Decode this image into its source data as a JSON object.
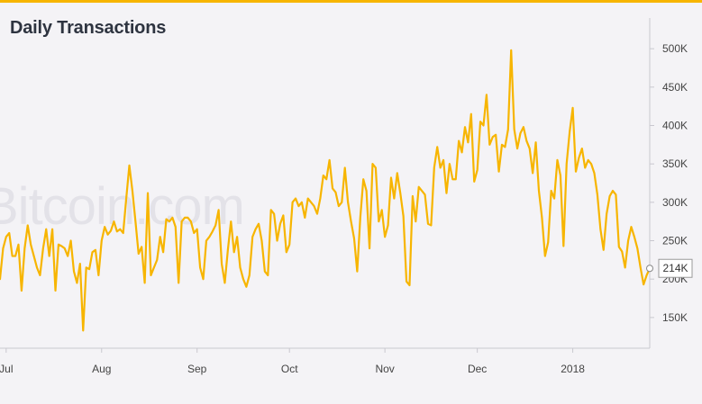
{
  "header": {
    "title": "Daily Transactions"
  },
  "watermark": "Bitcoin.com",
  "colors": {
    "line": "#f7b500",
    "accent_bar": "#f7b500",
    "background": "#f4f3f6"
  },
  "chart_data": {
    "type": "line",
    "title": "Daily Transactions",
    "xlabel": "",
    "ylabel": "",
    "x_tick_labels": [
      "Jul",
      "Aug",
      "Sep",
      "Oct",
      "Nov",
      "Dec",
      "2018"
    ],
    "y_tick_labels": [
      "150K",
      "200K",
      "250K",
      "300K",
      "350K",
      "400K",
      "450K",
      "500K"
    ],
    "y_ticks": [
      150000,
      200000,
      250000,
      300000,
      350000,
      400000,
      450000,
      500000
    ],
    "ylim": [
      110000,
      540000
    ],
    "x_range": [
      "2017-06-29",
      "2018-01-26"
    ],
    "grid": false,
    "legend": "none",
    "current_value_label": "214K",
    "current_value": 214000,
    "series": [
      {
        "values": [
          200000,
          240000,
          255000,
          260000,
          230000,
          230000,
          245000,
          185000,
          240000,
          270000,
          245000,
          230000,
          215000,
          205000,
          240000,
          265000,
          230000,
          265000,
          185000,
          245000,
          243000,
          240000,
          230000,
          250000,
          210000,
          195000,
          220000,
          133000,
          215000,
          213000,
          235000,
          238000,
          205000,
          250000,
          268000,
          258000,
          263000,
          275000,
          262000,
          265000,
          260000,
          305000,
          348000,
          315000,
          275000,
          233000,
          242000,
          195000,
          312000,
          205000,
          215000,
          225000,
          255000,
          235000,
          278000,
          275000,
          280000,
          268000,
          195000,
          275000,
          280000,
          280000,
          275000,
          260000,
          265000,
          215000,
          200000,
          250000,
          255000,
          262000,
          270000,
          290000,
          220000,
          195000,
          238000,
          275000,
          235000,
          255000,
          215000,
          200000,
          190000,
          205000,
          255000,
          265000,
          272000,
          250000,
          210000,
          205000,
          290000,
          285000,
          250000,
          272000,
          283000,
          235000,
          245000,
          300000,
          305000,
          295000,
          300000,
          280000,
          305000,
          300000,
          295000,
          285000,
          305000,
          335000,
          330000,
          355000,
          318000,
          313000,
          295000,
          300000,
          345000,
          300000,
          275000,
          253000,
          210000,
          280000,
          330000,
          315000,
          240000,
          350000,
          345000,
          275000,
          290000,
          255000,
          270000,
          332000,
          305000,
          338000,
          312000,
          282000,
          197000,
          192000,
          308000,
          275000,
          320000,
          315000,
          310000,
          272000,
          270000,
          345000,
          372000,
          345000,
          355000,
          312000,
          350000,
          330000,
          330000,
          380000,
          365000,
          398000,
          378000,
          415000,
          327000,
          342000,
          405000,
          400000,
          440000,
          375000,
          385000,
          388000,
          340000,
          375000,
          372000,
          395000,
          498000,
          395000,
          370000,
          390000,
          398000,
          380000,
          370000,
          338000,
          378000,
          315000,
          280000,
          230000,
          248000,
          315000,
          305000,
          355000,
          335000,
          243000,
          350000,
          392000,
          423000,
          340000,
          358000,
          370000,
          345000,
          355000,
          350000,
          338000,
          310000,
          265000,
          238000,
          285000,
          308000,
          315000,
          310000,
          242000,
          236000,
          215000,
          250000,
          268000,
          255000,
          240000,
          215000,
          193000,
          205000,
          214000
        ]
      }
    ]
  }
}
